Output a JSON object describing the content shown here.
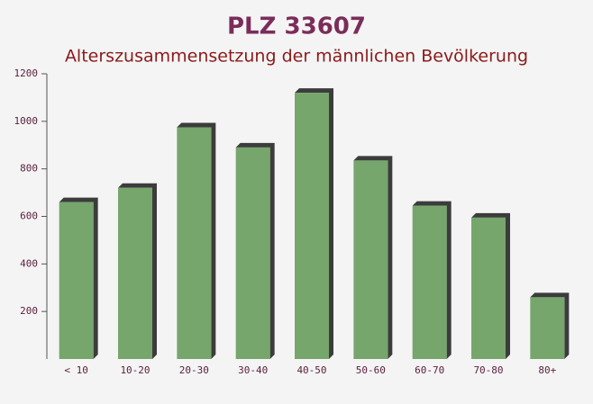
{
  "chart_data": {
    "type": "bar",
    "title": "PLZ 33607",
    "subtitle": "Alterszusammensetzung der männlichen Bevölkerung",
    "categories": [
      "< 10",
      "10-20",
      "20-30",
      "30-40",
      "40-50",
      "50-60",
      "60-70",
      "70-80",
      "80+"
    ],
    "values": [
      660,
      720,
      975,
      890,
      1120,
      835,
      645,
      595,
      260
    ],
    "color": "#6a9e5f",
    "ylim": [
      0,
      1200
    ],
    "yticks": [
      200,
      400,
      600,
      800,
      1000,
      1200
    ],
    "grid": false
  }
}
